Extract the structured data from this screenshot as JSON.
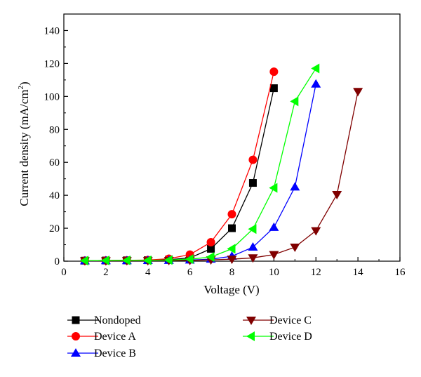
{
  "chart_data": {
    "type": "line",
    "title": "",
    "xlabel": "Voltage (V)",
    "ylabel_main": "Current density (mA/cm",
    "ylabel_sup": "2",
    "ylabel_tail": ")",
    "xlim": [
      0,
      16
    ],
    "ylim": [
      0,
      150
    ],
    "xticks": [
      0,
      2,
      4,
      6,
      8,
      10,
      12,
      14,
      16
    ],
    "yticks": [
      0,
      20,
      40,
      60,
      80,
      100,
      120,
      140
    ],
    "grid": false,
    "legend_position": "below",
    "series": [
      {
        "name": "Nondoped",
        "color": "#000000",
        "marker": "square",
        "x": [
          1,
          2,
          3,
          4,
          5,
          6,
          7,
          8,
          9,
          10
        ],
        "y": [
          0.3,
          0.4,
          0.5,
          0.6,
          0.9,
          2.0,
          7.5,
          20,
          47.5,
          105
        ]
      },
      {
        "name": "Device A",
        "color": "#ff0000",
        "marker": "circle",
        "x": [
          1,
          2,
          3,
          4,
          5,
          6,
          7,
          8,
          9,
          10
        ],
        "y": [
          0.3,
          0.4,
          0.5,
          0.7,
          1.5,
          4.0,
          11.5,
          28.5,
          61.5,
          115
        ]
      },
      {
        "name": "Device B",
        "color": "#0000ff",
        "marker": "triangle-up",
        "x": [
          1,
          2,
          3,
          4,
          5,
          6,
          7,
          8,
          9,
          10,
          11,
          12
        ],
        "y": [
          0.2,
          0.3,
          0.3,
          0.4,
          0.5,
          0.7,
          1.2,
          3.0,
          8.5,
          20.5,
          45,
          107.5
        ]
      },
      {
        "name": "Device C",
        "color": "#800000",
        "marker": "triangle-down",
        "x": [
          1,
          2,
          3,
          4,
          5,
          6,
          7,
          8,
          9,
          10,
          11,
          12,
          13,
          14
        ],
        "y": [
          0.2,
          0.2,
          0.3,
          0.3,
          0.4,
          0.5,
          0.8,
          1.2,
          2.0,
          4.0,
          8.5,
          18.5,
          40.5,
          103
        ]
      },
      {
        "name": "Device D",
        "color": "#00ff00",
        "marker": "triangle-left",
        "x": [
          1,
          2,
          3,
          4,
          5,
          6,
          7,
          8,
          9,
          10,
          11,
          12
        ],
        "y": [
          0.3,
          0.4,
          0.5,
          0.5,
          0.7,
          1.2,
          2.5,
          7.5,
          19.5,
          44.5,
          97,
          117
        ]
      }
    ]
  }
}
